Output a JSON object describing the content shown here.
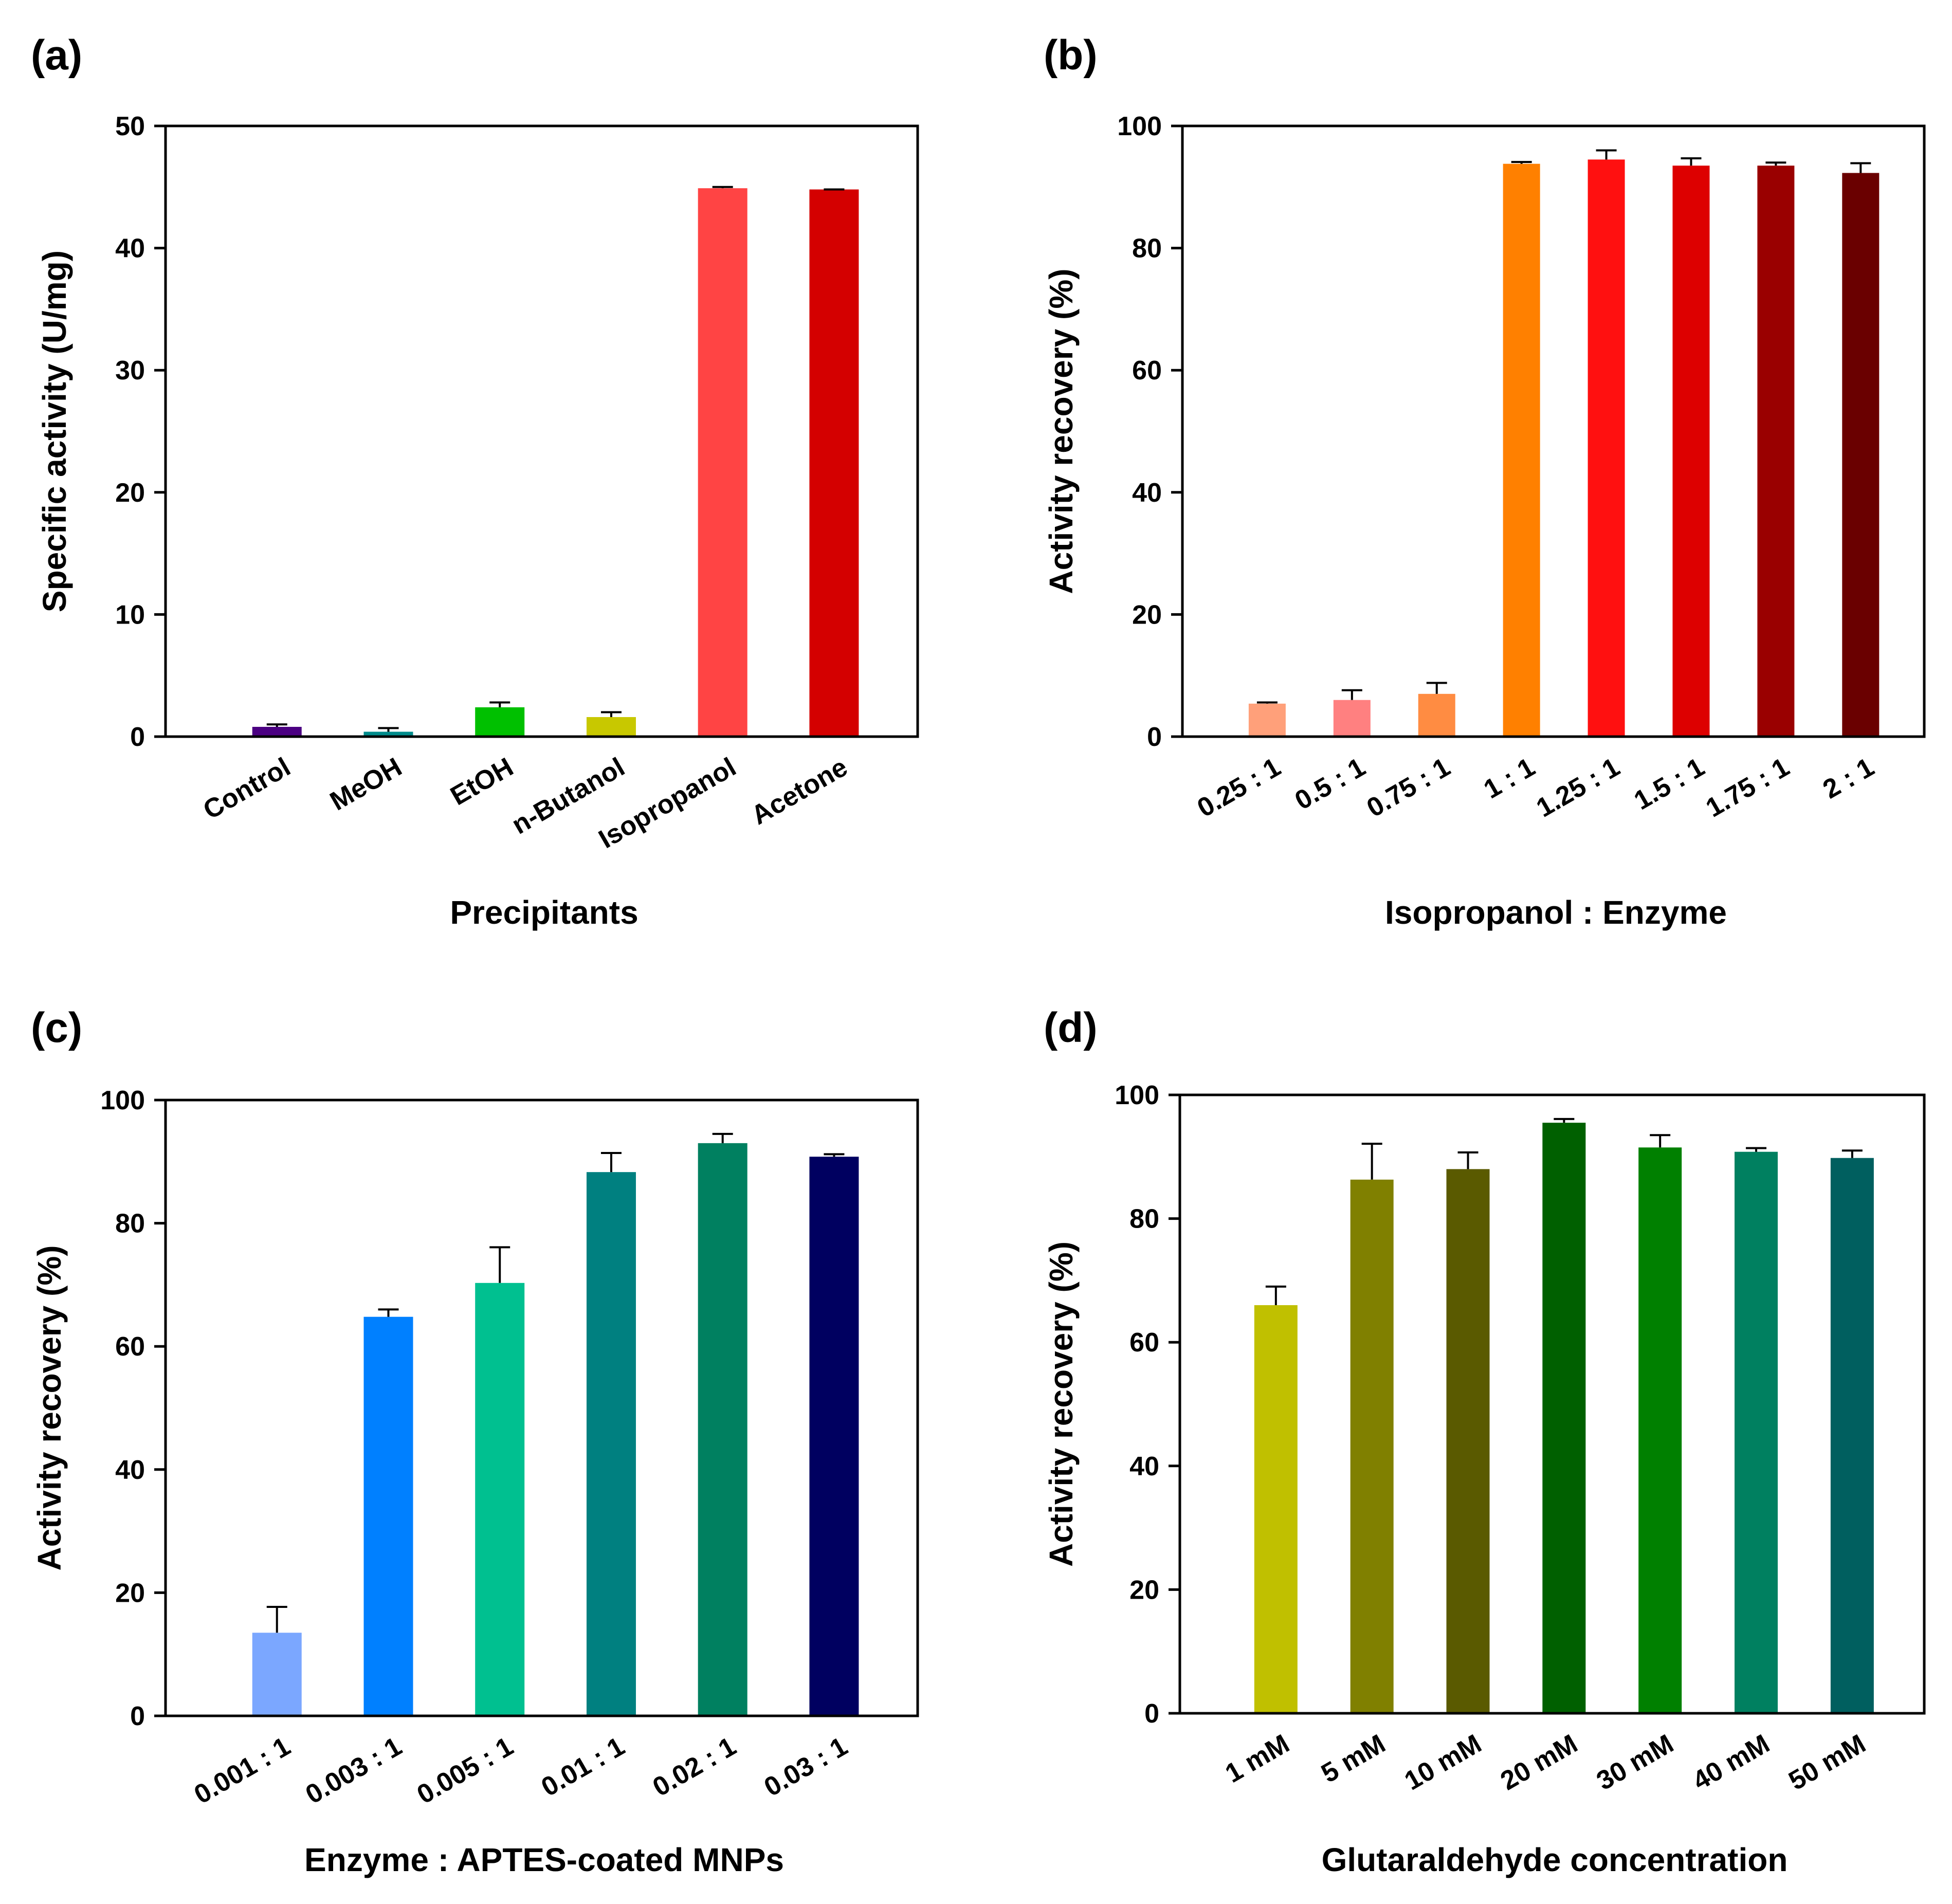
{
  "chart_data": [
    {
      "panel": "(a)",
      "type": "bar",
      "xlabel": "Precipitants",
      "ylabel": "Specific activity (U/mg)",
      "ylim": [
        0,
        50
      ],
      "yticks": [
        0,
        10,
        20,
        30,
        40,
        50
      ],
      "categories": [
        "Control",
        "MeOH",
        "EtOH",
        "n-Butanol",
        "Isopropanol",
        "Acetone"
      ],
      "values": [
        0.8,
        0.4,
        2.4,
        1.6,
        44.9,
        44.8
      ],
      "errors": [
        0.2,
        0.3,
        0.4,
        0.4,
        0.1,
        0.0
      ],
      "colors": [
        "#4B0082",
        "#008B8B",
        "#00C000",
        "#C8C800",
        "#FF4444",
        "#D40000"
      ]
    },
    {
      "panel": "(b)",
      "type": "bar",
      "xlabel": "Isopropanol : Enzyme",
      "ylabel": "Activity recovery (%)",
      "ylim": [
        0,
        100
      ],
      "yticks": [
        0,
        20,
        40,
        60,
        80,
        100
      ],
      "categories": [
        "0.25 : 1",
        "0.5 : 1",
        "0.75 : 1",
        "1 : 1",
        "1.25 : 1",
        "1.5 : 1",
        "1.75 : 1",
        "2 : 1"
      ],
      "values": [
        5.4,
        6.0,
        7.0,
        93.8,
        94.5,
        93.5,
        93.5,
        92.3
      ],
      "errors": [
        0.2,
        1.6,
        1.8,
        0.3,
        1.5,
        1.2,
        0.5,
        1.6
      ],
      "colors": [
        "#FFA07A",
        "#FF8080",
        "#FF8C42",
        "#FF8000",
        "#FF1010",
        "#DD0000",
        "#9A0000",
        "#6A0000"
      ]
    },
    {
      "panel": "(c)",
      "type": "bar",
      "xlabel": "Enzyme : APTES-coated MNPs",
      "ylabel": "Activity recovery (%)",
      "ylim": [
        0,
        100
      ],
      "yticks": [
        0,
        20,
        40,
        60,
        80,
        100
      ],
      "categories": [
        "0.001 : 1",
        "0.003 : 1",
        "0.005 : 1",
        "0.01 : 1",
        "0.02 : 1",
        "0.03 : 1"
      ],
      "values": [
        13.5,
        64.8,
        70.3,
        88.3,
        93.0,
        90.8
      ],
      "errors": [
        4.2,
        1.2,
        5.8,
        3.1,
        1.5,
        0.4
      ],
      "colors": [
        "#7BA7FF",
        "#0080FF",
        "#00C090",
        "#008080",
        "#008060",
        "#000060"
      ]
    },
    {
      "panel": "(d)",
      "type": "bar",
      "xlabel": "Glutaraldehyde concentration",
      "ylabel": "Activity recovery (%)",
      "ylim": [
        0,
        100
      ],
      "yticks": [
        0,
        20,
        40,
        60,
        80,
        100
      ],
      "categories": [
        "1 mM",
        "5 mM",
        "10 mM",
        "20 mM",
        "30 mM",
        "40 mM",
        "50 mM"
      ],
      "values": [
        66.0,
        86.3,
        88.0,
        95.5,
        91.5,
        90.8,
        89.8
      ],
      "errors": [
        3.0,
        5.8,
        2.7,
        0.6,
        2.0,
        0.6,
        1.2
      ],
      "colors": [
        "#C0C000",
        "#808000",
        "#5A5A00",
        "#006000",
        "#008000",
        "#008060",
        "#005F5F"
      ]
    }
  ]
}
